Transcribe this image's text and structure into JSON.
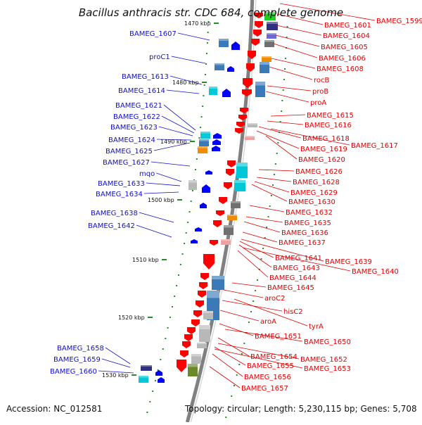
{
  "title": "Bacillus anthracis str. CDC 684, complete genome",
  "footer": {
    "accession": "Accession: NC_012581",
    "summary": "Topology: circular; Length: 5,230,115 bp; Genes: 5,708"
  },
  "colors": {
    "left_label": "#1010c8",
    "right_label": "#e00000",
    "backbone": "#808080",
    "tick": "#2a8a2a",
    "gene_red": "#ff0000",
    "gene_blue": "#0000ff"
  },
  "kbp_ticks": [
    "1470 kbp",
    "1480 kbp",
    "1490 kbp",
    "1500 kbp",
    "1510 kbp",
    "1520 kbp",
    "1530 kbp"
  ],
  "left_labels": [
    "BAMEG_1607",
    "proC1",
    "BAMEG_1613",
    "BAMEG_1614",
    "BAMEG_1621",
    "BAMEG_1622",
    "BAMEG_1623",
    "BAMEG_1624",
    "BAMEG_1625",
    "BAMEG_1627",
    "mqo",
    "BAMEG_1633",
    "BAMEG_1634",
    "BAMEG_1638",
    "BAMEG_1642",
    "BAMEG_1658",
    "BAMEG_1659",
    "BAMEG_1660"
  ],
  "right_labels": [
    "BAMEG_1599",
    "BAMEG_1601",
    "BAMEG_1604",
    "BAMEG_1605",
    "BAMEG_1606",
    "BAMEG_1608",
    "rocB",
    "proB",
    "proA",
    "BAMEG_1615",
    "BAMEG_1616",
    "BAMEG_1618",
    "BAMEG_1617",
    "BAMEG_1619",
    "BAMEG_1620",
    "BAMEG_1626",
    "BAMEG_1628",
    "BAMEG_1629",
    "BAMEG_1630",
    "BAMEG_1632",
    "BAMEG_1635",
    "BAMEG_1636",
    "BAMEG_1637",
    "BAMEG_1639",
    "BAMEG_1641",
    "BAMEG_1643",
    "BAMEG_1640",
    "BAMEG_1644",
    "BAMEG_1645",
    "aroC2",
    "hisC2",
    "aroA",
    "tyrA",
    "BAMEG_1651",
    "BAMEG_1650",
    "BAMEG_1654",
    "BAMEG_1652",
    "BAMEG_1655",
    "BAMEG_1653",
    "BAMEG_1656",
    "BAMEG_1657"
  ]
}
